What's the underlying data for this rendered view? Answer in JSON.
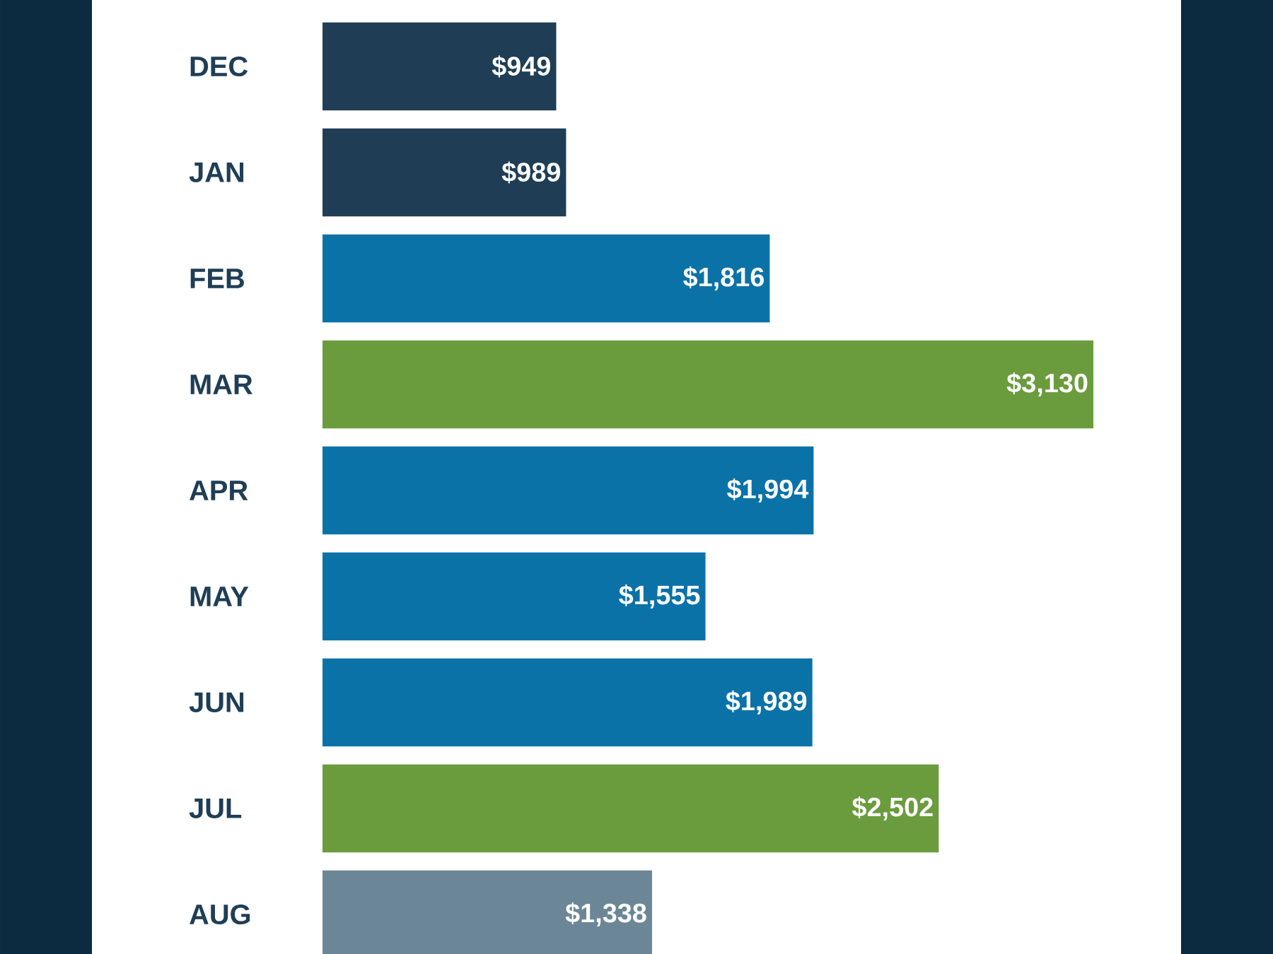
{
  "chart_data": {
    "type": "bar",
    "orientation": "horizontal",
    "tick_labels": "y",
    "categories": [
      "DEC",
      "JAN",
      "FEB",
      "MAR",
      "APR",
      "MAY",
      "JUN",
      "JUL",
      "AUG"
    ],
    "values": [
      949,
      989,
      1816,
      3130,
      1994,
      1555,
      1989,
      2502,
      1338
    ],
    "value_labels": [
      "$949",
      "$989",
      "$1,816",
      "$3,130",
      "$1,994",
      "$1,555",
      "$1,989",
      "$2,502",
      "$1,338"
    ],
    "colors": [
      "#1f3e56",
      "#1f3e56",
      "#0b72a8",
      "#6a9b3d",
      "#0b72a8",
      "#0b72a8",
      "#0b72a8",
      "#6a9b3d",
      "#6b8797"
    ]
  }
}
